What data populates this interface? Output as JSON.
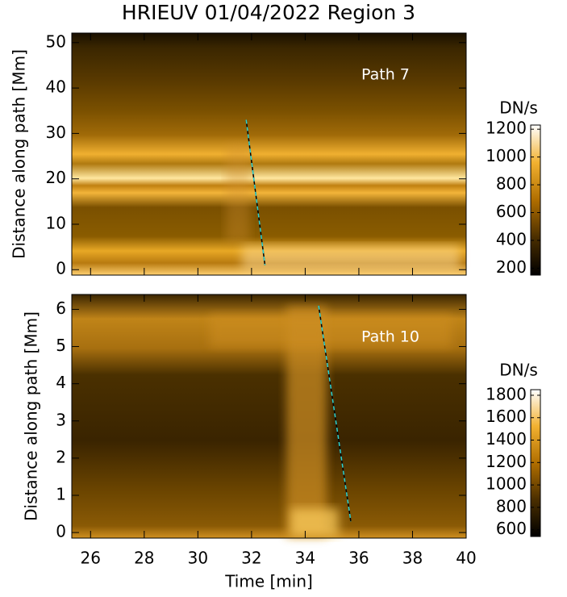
{
  "chart_data": [
    {
      "type": "heatmap",
      "title": "HRIEUV 01/04/2022   Region 3",
      "ylabel": "Distance along path [Mm]",
      "annotation": "Path  7",
      "xlim": [
        25.3,
        40
      ],
      "ylim": [
        -1.2,
        52.1
      ],
      "yticks": [
        0,
        10,
        20,
        30,
        40,
        50
      ],
      "colorbar_label": "DN/s",
      "zlim": [
        150,
        1230
      ],
      "zticks": [
        200,
        400,
        600,
        800,
        1000,
        1200
      ],
      "colormap": [
        "#000000",
        "#4a2e00",
        "#b06e00",
        "#f2b130",
        "#ffffff"
      ],
      "lines": [
        {
          "x": [
            31.8,
            32.5
          ],
          "y": [
            33,
            1
          ],
          "color": "#2ad4d4"
        }
      ]
    },
    {
      "type": "heatmap",
      "xlabel": "Time [min]",
      "ylabel": "Distance along path [Mm]",
      "annotation": "Path 10",
      "xlim": [
        25.3,
        40
      ],
      "ylim": [
        -0.15,
        6.4
      ],
      "xticks": [
        26,
        28,
        30,
        32,
        34,
        36,
        38,
        40
      ],
      "yticks": [
        0,
        1,
        2,
        3,
        4,
        5,
        6
      ],
      "colorbar_label": "DN/s",
      "zlim": [
        540,
        1850
      ],
      "zticks": [
        600,
        800,
        1000,
        1200,
        1400,
        1600,
        1800
      ],
      "colormap": [
        "#000000",
        "#4a2e00",
        "#b06e00",
        "#f2b130",
        "#ffffff"
      ],
      "lines": [
        {
          "x": [
            34.5,
            35.7
          ],
          "y": [
            6.1,
            0.3
          ],
          "color": "#2ad4d4"
        }
      ]
    }
  ]
}
